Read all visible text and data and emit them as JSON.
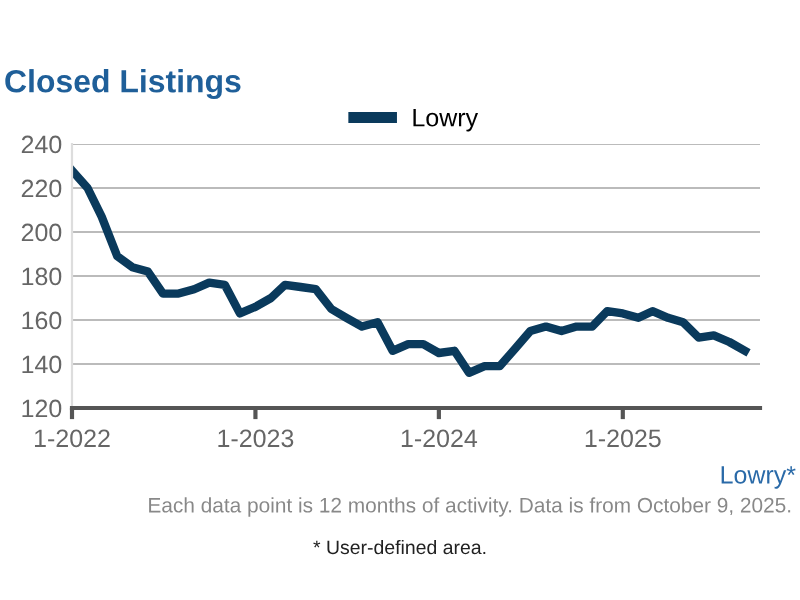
{
  "chart_data": {
    "type": "line",
    "title": "Closed Listings",
    "x": [
      "2022-01",
      "2022-02",
      "2022-03",
      "2022-04",
      "2022-05",
      "2022-06",
      "2022-07",
      "2022-08",
      "2022-09",
      "2022-10",
      "2022-11",
      "2022-12",
      "2023-01",
      "2023-02",
      "2023-03",
      "2023-04",
      "2023-05",
      "2023-06",
      "2023-07",
      "2023-08",
      "2023-09",
      "2023-10",
      "2023-11",
      "2023-12",
      "2024-01",
      "2024-02",
      "2024-03",
      "2024-04",
      "2024-05",
      "2024-06",
      "2024-07",
      "2024-08",
      "2024-09",
      "2024-10",
      "2024-11",
      "2024-12",
      "2025-01",
      "2025-02",
      "2025-03",
      "2025-04",
      "2025-05",
      "2025-06",
      "2025-07",
      "2025-08",
      "2025-09"
    ],
    "series": [
      {
        "name": "Lowry",
        "color": "#0a3a5c",
        "values": [
          228,
          220,
          207,
          189,
          184,
          182,
          172,
          172,
          174,
          177,
          176,
          163,
          166,
          170,
          176,
          175,
          174,
          165,
          161,
          157,
          159,
          146,
          149,
          149,
          145,
          146,
          136,
          139,
          139,
          147,
          155,
          157,
          155,
          157,
          157,
          164,
          163,
          161,
          164,
          161,
          159,
          152,
          153,
          150,
          146
        ]
      }
    ],
    "ylim": [
      120,
      240
    ],
    "yticks": [
      120,
      140,
      160,
      180,
      200,
      220,
      240
    ],
    "xlim": [
      "2022-01",
      "2025-10"
    ],
    "xticks": [
      {
        "value": "2022-01",
        "label": "1-2022"
      },
      {
        "value": "2023-01",
        "label": "1-2023"
      },
      {
        "value": "2024-01",
        "label": "1-2024"
      },
      {
        "value": "2025-01",
        "label": "1-2025"
      }
    ],
    "grid": "y",
    "legend": "top",
    "marker": "none",
    "line_style": "solid",
    "annotations": [
      "Lowry*",
      "Each data point is 12 months of activity. Data is from October 9, 2025.",
      "* User-defined area."
    ]
  }
}
